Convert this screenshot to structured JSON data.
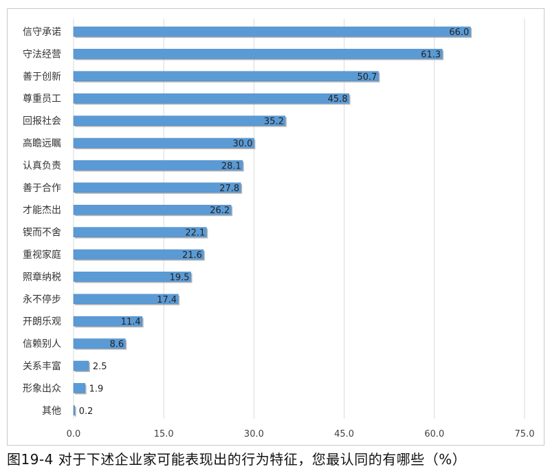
{
  "caption": "图19-4 对于下述企业家可能表现出的行为特征，您最认同的有哪些（%）",
  "colors": {
    "bar": "#5b9bd5",
    "bar_edge": "#4a86c5",
    "shadow": "#9a9a9a",
    "grid": "#d9d9d9",
    "text": "#404040"
  },
  "chart_data": {
    "type": "bar",
    "orientation": "horizontal",
    "categories": [
      "信守承诺",
      "守法经营",
      "善于创新",
      "尊重员工",
      "回报社会",
      "高瞻远瞩",
      "认真负责",
      "善于合作",
      "才能杰出",
      "锲而不舍",
      "重视家庭",
      "照章纳税",
      "永不停步",
      "开朗乐观",
      "信赖别人",
      "关系丰富",
      "形象出众",
      "其他"
    ],
    "values": [
      66.0,
      61.3,
      50.7,
      45.8,
      35.2,
      30.0,
      28.1,
      27.8,
      26.2,
      22.1,
      21.6,
      19.5,
      17.4,
      11.4,
      8.6,
      2.5,
      1.9,
      0.2
    ],
    "value_labels": [
      "66.0",
      "61.3",
      "50.7",
      "45.8",
      "35.2",
      "30.0",
      "28.1",
      "27.8",
      "26.2",
      "22.1",
      "21.6",
      "19.5",
      "17.4",
      "11.4",
      "8.6",
      "2.5",
      "1.9",
      "0.2"
    ],
    "xticks": [
      "0.0",
      "15.0",
      "30.0",
      "45.0",
      "60.0",
      "75.0"
    ],
    "xlim": [
      0,
      75
    ],
    "grid": true,
    "title": "",
    "xlabel": "",
    "ylabel": ""
  }
}
